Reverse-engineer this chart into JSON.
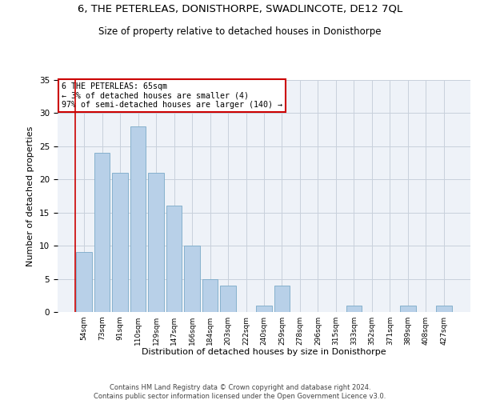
{
  "title": "6, THE PETERLEAS, DONISTHORPE, SWADLINCOTE, DE12 7QL",
  "subtitle": "Size of property relative to detached houses in Donisthorpe",
  "xlabel": "Distribution of detached houses by size in Donisthorpe",
  "ylabel": "Number of detached properties",
  "categories": [
    "54sqm",
    "73sqm",
    "91sqm",
    "110sqm",
    "129sqm",
    "147sqm",
    "166sqm",
    "184sqm",
    "203sqm",
    "222sqm",
    "240sqm",
    "259sqm",
    "278sqm",
    "296sqm",
    "315sqm",
    "333sqm",
    "352sqm",
    "371sqm",
    "389sqm",
    "408sqm",
    "427sqm"
  ],
  "values": [
    9,
    24,
    21,
    28,
    21,
    16,
    10,
    5,
    4,
    0,
    1,
    4,
    0,
    0,
    0,
    1,
    0,
    0,
    1,
    0,
    1
  ],
  "bar_color": "#b8d0e8",
  "bar_edge_color": "#7aaac8",
  "ylim": [
    0,
    35
  ],
  "yticks": [
    0,
    5,
    10,
    15,
    20,
    25,
    30,
    35
  ],
  "annotation_text": "6 THE PETERLEAS: 65sqm\n← 3% of detached houses are smaller (4)\n97% of semi-detached houses are larger (140) →",
  "annotation_box_color": "#ffffff",
  "annotation_box_edge": "#cc0000",
  "property_line_color": "#cc0000",
  "footer_line1": "Contains HM Land Registry data © Crown copyright and database right 2024.",
  "footer_line2": "Contains public sector information licensed under the Open Government Licence v3.0.",
  "title_fontsize": 9.5,
  "subtitle_fontsize": 8.5,
  "xlabel_fontsize": 8,
  "ylabel_fontsize": 8,
  "background_color": "#eef2f8",
  "grid_color": "#c8d0dc"
}
